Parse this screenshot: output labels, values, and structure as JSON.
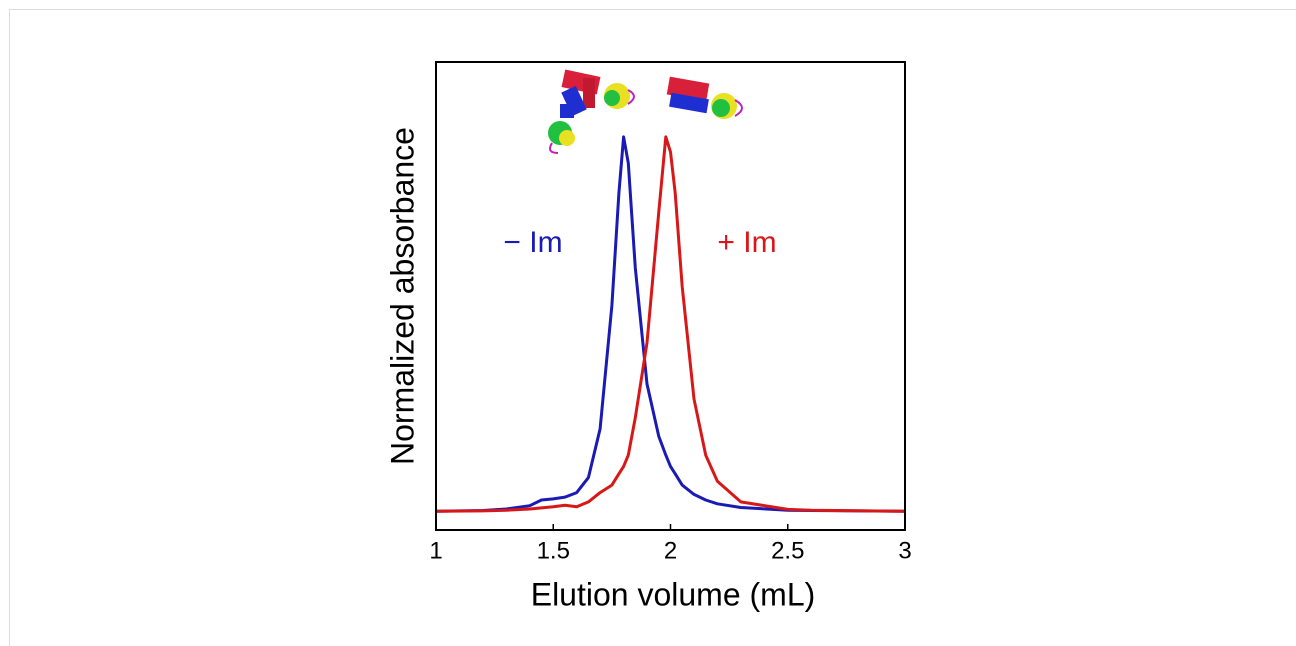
{
  "chart_data": {
    "type": "line",
    "x_label": "Elution volume (mL)",
    "y_label": "Normalized absorbance",
    "x": [
      1,
      1.2,
      1.3,
      1.4,
      1.45,
      1.5,
      1.55,
      1.6,
      1.65,
      1.7,
      1.75,
      1.78,
      1.8,
      1.82,
      1.85,
      1.9,
      1.95,
      1.98,
      2.0,
      2.02,
      2.05,
      2.1,
      2.15,
      2.2,
      2.3,
      2.5,
      2.6,
      3.0
    ],
    "series": [
      {
        "name": "− Im",
        "color": "#1a1ab4",
        "values": [
          0,
          0.002,
          0.006,
          0.015,
          0.03,
          0.033,
          0.038,
          0.05,
          0.09,
          0.22,
          0.55,
          0.85,
          1.0,
          0.93,
          0.65,
          0.34,
          0.2,
          0.15,
          0.12,
          0.1,
          0.07,
          0.045,
          0.03,
          0.02,
          0.01,
          0.003,
          0.002,
          0
        ]
      },
      {
        "name": "+ Im",
        "color": "#d81818",
        "values": [
          0,
          0.001,
          0.003,
          0.006,
          0.009,
          0.012,
          0.016,
          0.012,
          0.025,
          0.05,
          0.07,
          0.1,
          0.12,
          0.15,
          0.25,
          0.45,
          0.8,
          1.0,
          0.96,
          0.85,
          0.6,
          0.3,
          0.15,
          0.08,
          0.025,
          0.005,
          0.003,
          0
        ]
      }
    ],
    "xlim": [
      1,
      3
    ],
    "xticks": [
      1,
      1.5,
      2,
      2.5,
      3
    ],
    "ylim": [
      -0.05,
      1.2
    ]
  }
}
